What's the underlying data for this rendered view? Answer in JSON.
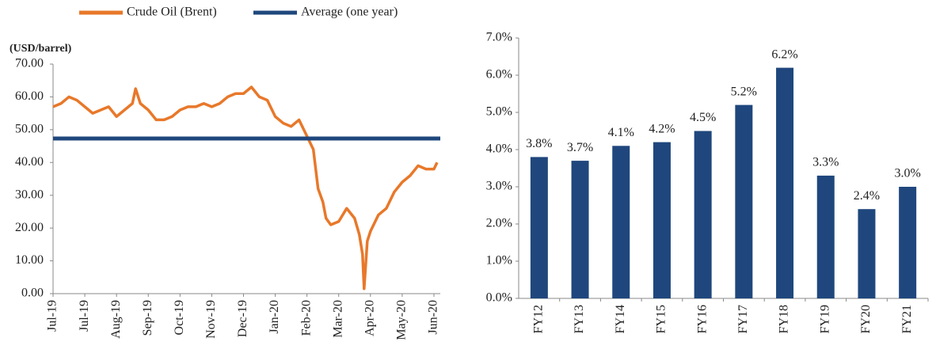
{
  "chart_data": [
    {
      "type": "line",
      "y_label": "(USD/barrel)",
      "x": [
        0,
        0.25,
        0.5,
        0.75,
        1,
        1.25,
        1.5,
        1.75,
        2,
        2.25,
        2.5,
        2.6,
        2.75,
        3,
        3.25,
        3.5,
        3.75,
        4,
        4.25,
        4.5,
        4.75,
        5,
        5.25,
        5.5,
        5.75,
        6,
        6.25,
        6.5,
        6.75,
        7,
        7.25,
        7.5,
        7.75,
        8,
        8.2,
        8.35,
        8.5,
        8.6,
        8.75,
        9,
        9.25,
        9.5,
        9.65,
        9.75,
        9.8,
        9.9,
        10,
        10.25,
        10.5,
        10.75,
        11,
        11.25,
        11.5,
        11.75,
        12,
        12.1
      ],
      "xlim": [
        0,
        12.2
      ],
      "xticks": [
        {
          "value": 0,
          "label": "Jul-19"
        },
        {
          "value": 1,
          "label": "Jul-19"
        },
        {
          "value": 2,
          "label": "Aug-19"
        },
        {
          "value": 3,
          "label": "Sep-19"
        },
        {
          "value": 4,
          "label": "Oct-19"
        },
        {
          "value": 5,
          "label": "Nov-19"
        },
        {
          "value": 6,
          "label": "Dec-19"
        },
        {
          "value": 7,
          "label": "Jan-20"
        },
        {
          "value": 8,
          "label": "Feb-20"
        },
        {
          "value": 9,
          "label": "Mar-20"
        },
        {
          "value": 10,
          "label": "Apr-20"
        },
        {
          "value": 11,
          "label": "May-20"
        },
        {
          "value": 12,
          "label": "Jun-20"
        }
      ],
      "ylim": [
        0,
        70
      ],
      "yticks": [
        {
          "value": 0,
          "label": "0.00"
        },
        {
          "value": 10,
          "label": "10.00"
        },
        {
          "value": 20,
          "label": "20.00"
        },
        {
          "value": 30,
          "label": "30.00"
        },
        {
          "value": 40,
          "label": "40.00"
        },
        {
          "value": 50,
          "label": "50.00"
        },
        {
          "value": 60,
          "label": "60.00"
        },
        {
          "value": 70,
          "label": "70.00"
        }
      ],
      "series": [
        {
          "name": "Crude Oil (Brent)",
          "color": "#e8782a",
          "values": [
            57,
            58,
            60,
            59,
            57,
            55,
            56,
            57,
            54,
            56,
            58,
            62.5,
            58,
            56,
            53,
            53,
            54,
            56,
            57,
            57,
            58,
            57,
            58,
            60,
            61,
            61,
            63,
            60,
            59,
            54,
            52,
            51,
            53,
            48,
            44,
            32,
            28,
            23,
            21,
            22,
            26,
            23,
            18,
            12,
            1.5,
            16,
            19,
            24,
            26,
            31,
            34,
            36,
            39,
            38,
            38,
            40
          ]
        },
        {
          "name": "Average (one year)",
          "color": "#1f477d",
          "value": 47.3
        }
      ]
    },
    {
      "type": "bar",
      "categories": [
        "FY12",
        "FY13",
        "FY14",
        "FY15",
        "FY16",
        "FY17",
        "FY18",
        "FY19",
        "FY20",
        "FY21"
      ],
      "values": [
        3.8,
        3.7,
        4.1,
        4.2,
        4.5,
        5.2,
        6.2,
        3.3,
        2.4,
        3.0
      ],
      "value_labels": [
        "3.8%",
        "3.7%",
        "4.1%",
        "4.2%",
        "4.5%",
        "5.2%",
        "6.2%",
        "3.3%",
        "2.4%",
        "3.0%"
      ],
      "color": "#1f477d",
      "ylim": [
        0,
        7
      ],
      "yticks": [
        {
          "value": 0,
          "label": "0.0%"
        },
        {
          "value": 1,
          "label": "1.0%"
        },
        {
          "value": 2,
          "label": "2.0%"
        },
        {
          "value": 3,
          "label": "3.0%"
        },
        {
          "value": 4,
          "label": "4.0%"
        },
        {
          "value": 5,
          "label": "5.0%"
        },
        {
          "value": 6,
          "label": "6.0%"
        },
        {
          "value": 7,
          "label": "7.0%"
        }
      ]
    }
  ]
}
